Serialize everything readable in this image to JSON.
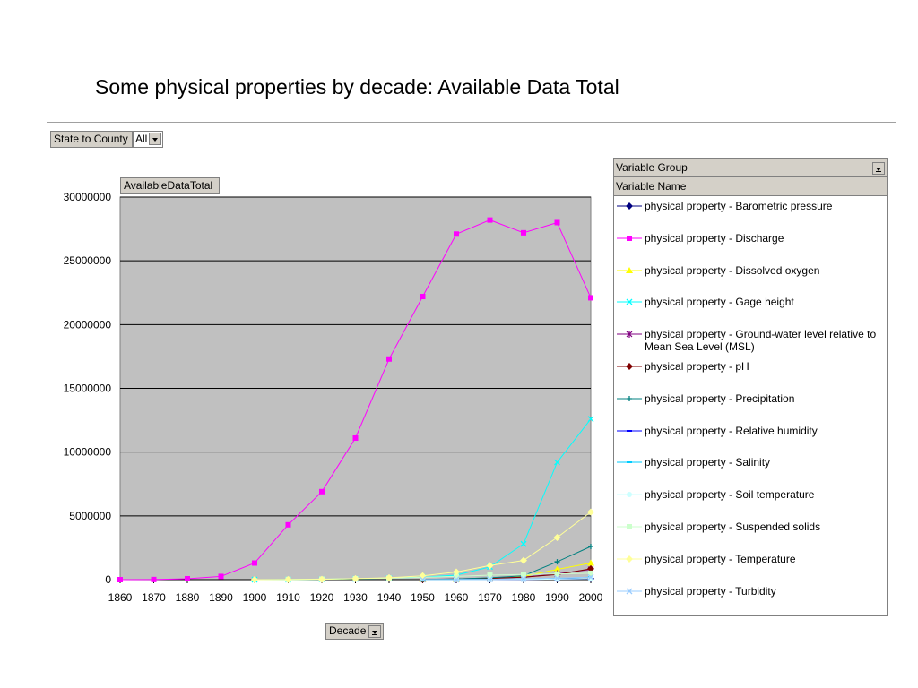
{
  "page": {
    "title": "Some physical properties by decade: Available Data Total"
  },
  "filters": {
    "page_field": {
      "label": "State to County",
      "value": "All"
    },
    "data_field": {
      "label": "AvailableDataTotal"
    },
    "category_field": {
      "label": "Decade"
    },
    "legend_header_group": "Variable Group",
    "legend_header_name": "Variable Name"
  },
  "colors": {
    "plot_bg": "#c0c0c0",
    "gridline": "#000000"
  },
  "chart_data": {
    "type": "line",
    "title": "Some physical properties by decade: Available Data Total",
    "xlabel": "Decade",
    "ylabel": "AvailableDataTotal",
    "x": [
      "1860",
      "1870",
      "1880",
      "1890",
      "1900",
      "1910",
      "1920",
      "1930",
      "1940",
      "1950",
      "1960",
      "1970",
      "1980",
      "1990",
      "2000"
    ],
    "ylim": [
      0,
      30000000
    ],
    "yticks": [
      "0",
      "5000000",
      "10000000",
      "15000000",
      "20000000",
      "25000000",
      "30000000"
    ],
    "yticks_values": [
      0,
      5000000,
      10000000,
      15000000,
      20000000,
      25000000,
      30000000
    ],
    "grid": true,
    "legend_position": "right",
    "series": [
      {
        "name": "physical property - Barometric pressure",
        "color": "#000080",
        "marker": "diamond",
        "values": [
          null,
          null,
          null,
          null,
          null,
          null,
          null,
          null,
          null,
          null,
          10000,
          20000,
          30000,
          50000,
          80000
        ]
      },
      {
        "name": "physical property - Discharge",
        "color": "#ff00ff",
        "marker": "square",
        "values": [
          0,
          10000,
          70000,
          250000,
          1300000,
          4300000,
          6900000,
          11100000,
          17300000,
          22200000,
          27100000,
          28200000,
          27200000,
          28000000,
          22100000
        ]
      },
      {
        "name": "physical property - Dissolved oxygen",
        "color": "#ffff00",
        "marker": "triangle",
        "values": [
          null,
          null,
          null,
          null,
          null,
          null,
          null,
          null,
          null,
          10000,
          30000,
          100000,
          250000,
          800000,
          1300000
        ]
      },
      {
        "name": "physical property - Gage height",
        "color": "#00ffff",
        "marker": "x",
        "values": [
          null,
          null,
          null,
          null,
          0,
          10000,
          30000,
          60000,
          120000,
          200000,
          350000,
          1000000,
          2800000,
          9200000,
          12600000
        ]
      },
      {
        "name": "physical property - Ground-water level relative to Mean Sea Level (MSL)",
        "color": "#800080",
        "marker": "star",
        "values": [
          null,
          null,
          null,
          null,
          null,
          null,
          null,
          null,
          null,
          20000,
          60000,
          120000,
          200000,
          450000,
          800000
        ]
      },
      {
        "name": "physical property - pH",
        "color": "#800000",
        "marker": "diamond",
        "values": [
          null,
          null,
          null,
          null,
          null,
          null,
          null,
          null,
          null,
          10000,
          40000,
          100000,
          200000,
          400000,
          850000
        ]
      },
      {
        "name": "physical property - Precipitation",
        "color": "#008080",
        "marker": "plus",
        "values": [
          null,
          null,
          null,
          null,
          null,
          null,
          null,
          null,
          null,
          10000,
          50000,
          150000,
          300000,
          1400000,
          2600000
        ]
      },
      {
        "name": "physical property - Relative humidity",
        "color": "#0000ff",
        "marker": "dash",
        "values": [
          null,
          null,
          null,
          null,
          null,
          null,
          null,
          null,
          null,
          null,
          5000,
          10000,
          20000,
          40000,
          60000
        ]
      },
      {
        "name": "physical property - Salinity",
        "color": "#00ccff",
        "marker": "dash",
        "values": [
          null,
          null,
          null,
          null,
          null,
          null,
          null,
          null,
          null,
          5000,
          10000,
          30000,
          60000,
          100000,
          200000
        ]
      },
      {
        "name": "physical property - Soil temperature",
        "color": "#ccffff",
        "marker": "circle",
        "values": [
          null,
          null,
          null,
          null,
          null,
          null,
          null,
          null,
          null,
          null,
          5000,
          10000,
          20000,
          40000,
          80000
        ]
      },
      {
        "name": "physical property - Suspended solids",
        "color": "#ccffcc",
        "marker": "square",
        "values": [
          null,
          null,
          null,
          null,
          null,
          20000,
          40000,
          70000,
          120000,
          180000,
          250000,
          350000,
          400000,
          450000,
          500000
        ]
      },
      {
        "name": "physical property - Temperature",
        "color": "#ffff99",
        "marker": "diamond",
        "values": [
          null,
          null,
          null,
          null,
          0,
          10000,
          30000,
          80000,
          150000,
          300000,
          600000,
          1100000,
          1500000,
          3300000,
          5300000
        ]
      },
      {
        "name": "physical property - Turbidity",
        "color": "#99ccff",
        "marker": "x",
        "values": [
          null,
          null,
          null,
          null,
          null,
          null,
          null,
          null,
          null,
          5000,
          10000,
          30000,
          60000,
          120000,
          200000
        ]
      }
    ]
  }
}
